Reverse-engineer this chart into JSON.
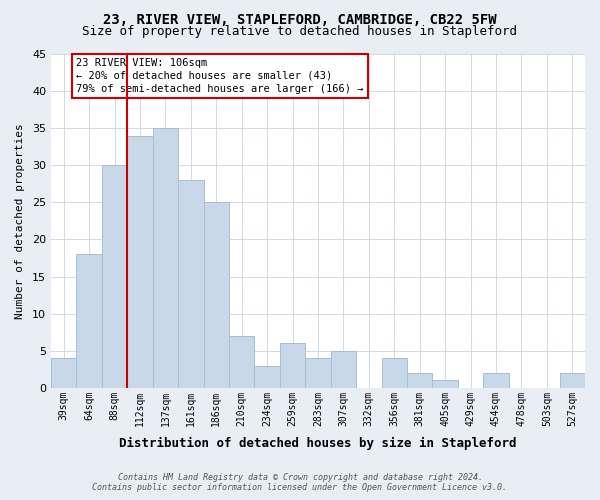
{
  "title": "23, RIVER VIEW, STAPLEFORD, CAMBRIDGE, CB22 5FW",
  "subtitle": "Size of property relative to detached houses in Stapleford",
  "xlabel": "Distribution of detached houses by size in Stapleford",
  "ylabel": "Number of detached properties",
  "categories": [
    "39sqm",
    "64sqm",
    "88sqm",
    "112sqm",
    "137sqm",
    "161sqm",
    "186sqm",
    "210sqm",
    "234sqm",
    "259sqm",
    "283sqm",
    "307sqm",
    "332sqm",
    "356sqm",
    "381sqm",
    "405sqm",
    "429sqm",
    "454sqm",
    "478sqm",
    "503sqm",
    "527sqm"
  ],
  "values": [
    4,
    18,
    30,
    34,
    35,
    28,
    25,
    7,
    3,
    6,
    4,
    5,
    0,
    4,
    2,
    1,
    0,
    2,
    0,
    0,
    2
  ],
  "bar_color": "#c8d8e8",
  "bar_edge_color": "#a8bfd0",
  "ylim": [
    0,
    45
  ],
  "yticks": [
    0,
    5,
    10,
    15,
    20,
    25,
    30,
    35,
    40,
    45
  ],
  "vline_color": "#cc0000",
  "annotation_text": "23 RIVER VIEW: 106sqm\n← 20% of detached houses are smaller (43)\n79% of semi-detached houses are larger (166) →",
  "annotation_box_color": "#ffffff",
  "annotation_box_edge": "#cc0000",
  "footer_line1": "Contains HM Land Registry data © Crown copyright and database right 2024.",
  "footer_line2": "Contains public sector information licensed under the Open Government Licence v3.0.",
  "bg_color": "#e8eef4",
  "plot_bg_color": "#ffffff",
  "grid_color": "#c8d4e0",
  "title_fontsize": 10,
  "subtitle_fontsize": 9
}
